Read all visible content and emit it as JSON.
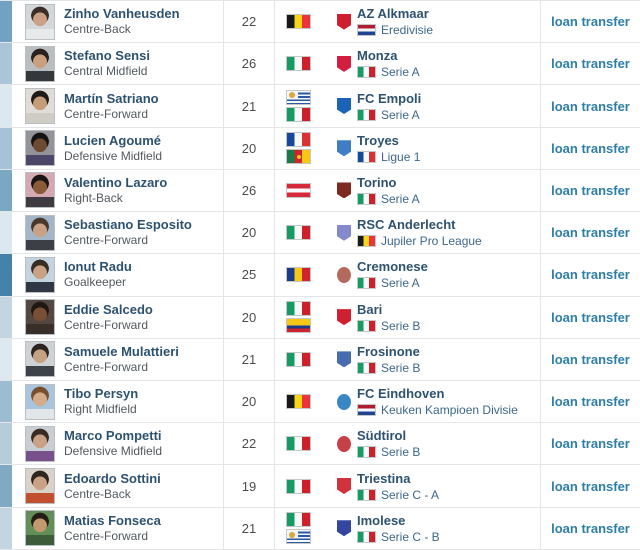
{
  "table": {
    "loan_label": "loan transfer",
    "rows": [
      {
        "name": "Zinho Vanheusden",
        "position": "Centre-Back",
        "age": "22",
        "nationalities": [
          "BE"
        ],
        "club": "AZ Alkmaar",
        "league": "Eredivisie",
        "league_flag": "NL",
        "crest_color": "#cf1f2e",
        "crest_shape": "shield",
        "strip_color": "#72a2c1",
        "photo": {
          "bg": "#d3d8db",
          "shirt": "#e7e9ea",
          "skin": "#caa184",
          "hair": "#3a2e26"
        }
      },
      {
        "name": "Stefano Sensi",
        "position": "Central Midfield",
        "age": "26",
        "nationalities": [
          "IT"
        ],
        "club": "Monza",
        "league": "Serie A",
        "league_flag": "IT",
        "crest_color": "#d41e40",
        "crest_shape": "shield",
        "strip_color": "#a9c5d6",
        "photo": {
          "bg": "#b9bec2",
          "shirt": "#34383c",
          "skin": "#c9a07e",
          "hair": "#2a221c"
        }
      },
      {
        "name": "Martín Satriano",
        "position": "Centre-Forward",
        "age": "21",
        "nationalities": [
          "UY",
          "IT"
        ],
        "club": "FC Empoli",
        "league": "Serie A",
        "league_flag": "IT",
        "crest_color": "#1c63b7",
        "crest_shape": "shield",
        "strip_color": "#dce8ef",
        "photo": {
          "bg": "#e0ddd8",
          "shirt": "#cfccc6",
          "skin": "#c59b78",
          "hair": "#1f1a16"
        }
      },
      {
        "name": "Lucien Agoumé",
        "position": "Defensive Midfield",
        "age": "20",
        "nationalities": [
          "FR",
          "CM"
        ],
        "club": "Troyes",
        "league": "Ligue 1",
        "league_flag": "FR",
        "crest_color": "#3f7ec7",
        "crest_shape": "shield",
        "strip_color": "#a6c2d5",
        "photo": {
          "bg": "#93939b",
          "shirt": "#4c4668",
          "skin": "#6e4a30",
          "hair": "#161210"
        }
      },
      {
        "name": "Valentino Lazaro",
        "position": "Right-Back",
        "age": "26",
        "nationalities": [
          "AT"
        ],
        "club": "Torino",
        "league": "Serie A",
        "league_flag": "IT",
        "crest_color": "#7d2b22",
        "crest_shape": "shield",
        "strip_color": "#7aa8c3",
        "photo": {
          "bg": "#d4a9b2",
          "shirt": "#3f3a42",
          "skin": "#8a5a3a",
          "hair": "#1a1512"
        }
      },
      {
        "name": "Sebastiano Esposito",
        "position": "Centre-Forward",
        "age": "20",
        "nationalities": [
          "IT"
        ],
        "club": "RSC Anderlecht",
        "league": "Jupiler Pro League",
        "league_flag": "BE",
        "crest_color": "#8489cb",
        "crest_shape": "shield",
        "strip_color": "#dce8ef",
        "photo": {
          "bg": "#a3b6c9",
          "shirt": "#3c4046",
          "skin": "#c9a184",
          "hair": "#4a382a"
        }
      },
      {
        "name": "Ionut Radu",
        "position": "Goalkeeper",
        "age": "25",
        "nationalities": [
          "RO"
        ],
        "club": "Cremonese",
        "league": "Serie A",
        "league_flag": "IT",
        "crest_color": "#b56a5f",
        "crest_shape": "round",
        "strip_color": "#4581a8",
        "photo": {
          "bg": "#c2d4df",
          "shirt": "#2e3743",
          "skin": "#c9a184",
          "hair": "#3a2e24"
        }
      },
      {
        "name": "Eddie Salcedo",
        "position": "Centre-Forward",
        "age": "20",
        "nationalities": [
          "IT",
          "CO"
        ],
        "club": "Bari",
        "league": "Serie B",
        "league_flag": "IT",
        "crest_color": "#cf2031",
        "crest_shape": "shield",
        "strip_color": "#c2d5e1",
        "photo": {
          "bg": "#544741",
          "shirt": "#383028",
          "skin": "#7a5034",
          "hair": "#201712"
        }
      },
      {
        "name": "Samuele Mulattieri",
        "position": "Centre-Forward",
        "age": "21",
        "nationalities": [
          "IT"
        ],
        "club": "Frosinone",
        "league": "Serie B",
        "league_flag": "IT",
        "crest_color": "#496cb0",
        "crest_shape": "shield",
        "strip_color": "#dde9ef",
        "photo": {
          "bg": "#ced2d7",
          "shirt": "#3e434a",
          "skin": "#c6a283",
          "hair": "#2c241e"
        }
      },
      {
        "name": "Tibo Persyn",
        "position": "Right Midfield",
        "age": "20",
        "nationalities": [
          "BE"
        ],
        "club": "FC Eindhoven",
        "league": "Keuken Kampioen Divisie",
        "league_flag": "NL",
        "crest_color": "#3b86c4",
        "crest_shape": "round",
        "strip_color": "#9cbcd1",
        "photo": {
          "bg": "#a9c4dd",
          "shirt": "#e3e6e8",
          "skin": "#d4ac8a",
          "hair": "#7a4f2e"
        }
      },
      {
        "name": "Marco Pompetti",
        "position": "Defensive Midfield",
        "age": "22",
        "nationalities": [
          "IT"
        ],
        "club": "Südtirol",
        "league": "Serie B",
        "league_flag": "IT",
        "crest_color": "#c64049",
        "crest_shape": "round",
        "strip_color": "#b6ccda",
        "photo": {
          "bg": "#c9cdd4",
          "shirt": "#77508c",
          "skin": "#c9a184",
          "hair": "#3a2c22"
        }
      },
      {
        "name": "Edoardo Sottini",
        "position": "Centre-Back",
        "age": "19",
        "nationalities": [
          "IT"
        ],
        "club": "Triestina",
        "league": "Serie C - A",
        "league_flag": "IT",
        "crest_color": "#d2323c",
        "crest_shape": "shield",
        "strip_color": "#81a9c4",
        "photo": {
          "bg": "#d9d2c9",
          "shirt": "#c2502f",
          "skin": "#c9a184",
          "hair": "#2e251e"
        }
      },
      {
        "name": "Matias Fonseca",
        "position": "Centre-Forward",
        "age": "21",
        "nationalities": [
          "IT",
          "UY"
        ],
        "club": "Imolese",
        "league": "Serie C - B",
        "league_flag": "IT",
        "crest_color": "#3447a0",
        "crest_shape": "shield",
        "strip_color": "#c2d5e1",
        "photo": {
          "bg": "#628f57",
          "shirt": "#3c5c3a",
          "skin": "#c2996f",
          "hair": "#241c16"
        }
      }
    ]
  }
}
